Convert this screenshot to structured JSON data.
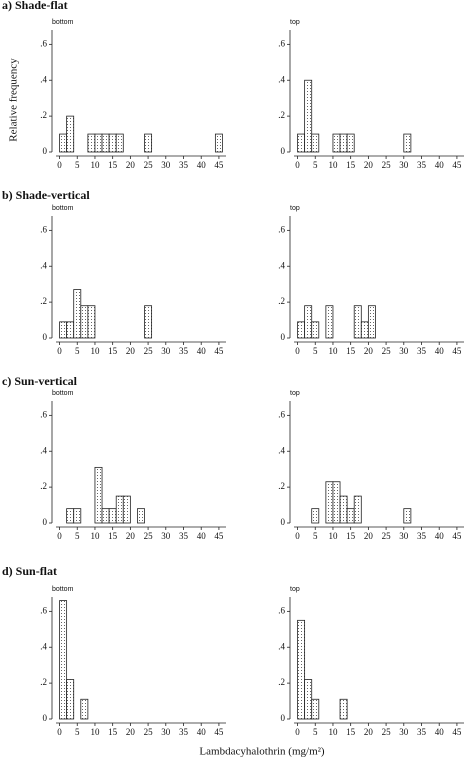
{
  "ylabel": "Relative frequency",
  "xlabel": "Lambdacyhalothrin (mg/m²)",
  "sections": [
    {
      "title": "a) Shade-flat"
    },
    {
      "title": "b) Shade-vertical"
    },
    {
      "title": "c) Sun-vertical"
    },
    {
      "title": "d) Sun-flat"
    }
  ],
  "chart_data": [
    {
      "type": "histogram",
      "title": "bottom",
      "bins": [
        0,
        2,
        4,
        6,
        8,
        10,
        12,
        14,
        16,
        18,
        20,
        22,
        24,
        26,
        28,
        30,
        32,
        34,
        36,
        38,
        40,
        42,
        44,
        46
      ],
      "values": [
        0.1,
        0.2,
        0,
        0,
        0.1,
        0.1,
        0.1,
        0.1,
        0.1,
        0,
        0,
        0,
        0.1,
        0,
        0,
        0,
        0,
        0,
        0,
        0,
        0,
        0,
        0.1
      ],
      "xlim": [
        -1,
        47
      ],
      "xticks": [
        0,
        5,
        10,
        15,
        20,
        25,
        30,
        35,
        40,
        45
      ],
      "ylim": [
        0,
        0.68
      ],
      "yticks": [
        0,
        {
          "value": 0.2,
          "label": ".2"
        },
        {
          "value": 0.4,
          "label": ".4"
        },
        {
          "value": 0.6,
          "label": ".6"
        }
      ]
    },
    {
      "type": "histogram",
      "title": "top",
      "bins": [
        0,
        2,
        4,
        6,
        8,
        10,
        12,
        14,
        16,
        18,
        20,
        22,
        24,
        26,
        28,
        30,
        32,
        34,
        36,
        38,
        40,
        42,
        44,
        46
      ],
      "values": [
        0.1,
        0.4,
        0.1,
        0,
        0,
        0.1,
        0.1,
        0.1,
        0,
        0,
        0,
        0,
        0,
        0,
        0,
        0.1,
        0,
        0,
        0,
        0,
        0,
        0,
        0
      ],
      "xlim": [
        -1,
        47
      ],
      "xticks": [
        0,
        5,
        10,
        15,
        20,
        25,
        30,
        35,
        40,
        45
      ],
      "ylim": [
        0,
        0.68
      ],
      "yticks": [
        0,
        {
          "value": 0.2,
          "label": ".2"
        },
        {
          "value": 0.4,
          "label": ".4"
        },
        {
          "value": 0.6,
          "label": ".6"
        }
      ]
    },
    {
      "type": "histogram",
      "title": "bottom",
      "bins": [
        0,
        2,
        4,
        6,
        8,
        10,
        12,
        14,
        16,
        18,
        20,
        22,
        24,
        26,
        28,
        30,
        32,
        34,
        36,
        38,
        40,
        42,
        44,
        46
      ],
      "values": [
        0.09,
        0.09,
        0.27,
        0.18,
        0.18,
        0,
        0,
        0,
        0,
        0,
        0,
        0,
        0.18,
        0,
        0,
        0,
        0,
        0,
        0,
        0,
        0,
        0,
        0
      ],
      "xlim": [
        -1,
        47
      ],
      "xticks": [
        0,
        5,
        10,
        15,
        20,
        25,
        30,
        35,
        40,
        45
      ],
      "ylim": [
        0,
        0.68
      ],
      "yticks": [
        0,
        {
          "value": 0.2,
          "label": ".2"
        },
        {
          "value": 0.4,
          "label": ".4"
        },
        {
          "value": 0.6,
          "label": ".6"
        }
      ]
    },
    {
      "type": "histogram",
      "title": "top",
      "bins": [
        0,
        2,
        4,
        6,
        8,
        10,
        12,
        14,
        16,
        18,
        20,
        22,
        24,
        26,
        28,
        30,
        32,
        34,
        36,
        38,
        40,
        42,
        44,
        46
      ],
      "values": [
        0.09,
        0.18,
        0.09,
        0,
        0.18,
        0,
        0,
        0,
        0.18,
        0.09,
        0.18,
        0,
        0,
        0,
        0,
        0,
        0,
        0,
        0,
        0,
        0,
        0,
        0
      ],
      "xlim": [
        -1,
        47
      ],
      "xticks": [
        0,
        5,
        10,
        15,
        20,
        25,
        30,
        35,
        40,
        45
      ],
      "ylim": [
        0,
        0.68
      ],
      "yticks": [
        0,
        {
          "value": 0.2,
          "label": ".2"
        },
        {
          "value": 0.4,
          "label": ".4"
        },
        {
          "value": 0.6,
          "label": ".6"
        }
      ]
    },
    {
      "type": "histogram",
      "title": "bottom",
      "bins": [
        0,
        2,
        4,
        6,
        8,
        10,
        12,
        14,
        16,
        18,
        20,
        22,
        24,
        26,
        28,
        30,
        32,
        34,
        36,
        38,
        40,
        42,
        44,
        46
      ],
      "values": [
        0,
        0.08,
        0.08,
        0,
        0,
        0.31,
        0.08,
        0.08,
        0.15,
        0.15,
        0,
        0.08,
        0,
        0,
        0,
        0,
        0,
        0,
        0,
        0,
        0,
        0,
        0
      ],
      "xlim": [
        -1,
        47
      ],
      "xticks": [
        0,
        5,
        10,
        15,
        20,
        25,
        30,
        35,
        40,
        45
      ],
      "ylim": [
        0,
        0.68
      ],
      "yticks": [
        0,
        {
          "value": 0.2,
          "label": ".2"
        },
        {
          "value": 0.4,
          "label": ".4"
        },
        {
          "value": 0.6,
          "label": ".6"
        }
      ]
    },
    {
      "type": "histogram",
      "title": "top",
      "bins": [
        0,
        2,
        4,
        6,
        8,
        10,
        12,
        14,
        16,
        18,
        20,
        22,
        24,
        26,
        28,
        30,
        32,
        34,
        36,
        38,
        40,
        42,
        44,
        46
      ],
      "values": [
        0,
        0,
        0.08,
        0,
        0.23,
        0.23,
        0.15,
        0.08,
        0.15,
        0,
        0,
        0,
        0,
        0,
        0,
        0.08,
        0,
        0,
        0,
        0,
        0,
        0,
        0
      ],
      "xlim": [
        -1,
        47
      ],
      "xticks": [
        0,
        5,
        10,
        15,
        20,
        25,
        30,
        35,
        40,
        45
      ],
      "ylim": [
        0,
        0.68
      ],
      "yticks": [
        0,
        {
          "value": 0.2,
          "label": ".2"
        },
        {
          "value": 0.4,
          "label": ".4"
        },
        {
          "value": 0.6,
          "label": ".6"
        }
      ]
    },
    {
      "type": "histogram",
      "title": "bottom",
      "bins": [
        0,
        2,
        4,
        6,
        8,
        10,
        12,
        14,
        16,
        18,
        20,
        22,
        24,
        26,
        28,
        30,
        32,
        34,
        36,
        38,
        40,
        42,
        44,
        46
      ],
      "values": [
        0.66,
        0.22,
        0,
        0.11,
        0,
        0,
        0,
        0,
        0,
        0,
        0,
        0,
        0,
        0,
        0,
        0,
        0,
        0,
        0,
        0,
        0,
        0,
        0
      ],
      "xlim": [
        -1,
        47
      ],
      "xticks": [
        0,
        5,
        10,
        15,
        20,
        25,
        30,
        35,
        40,
        45
      ],
      "ylim": [
        0,
        0.68
      ],
      "yticks": [
        0,
        {
          "value": 0.2,
          "label": ".2"
        },
        {
          "value": 0.4,
          "label": ".4"
        },
        {
          "value": 0.6,
          "label": ".6"
        }
      ]
    },
    {
      "type": "histogram",
      "title": "top",
      "bins": [
        0,
        2,
        4,
        6,
        8,
        10,
        12,
        14,
        16,
        18,
        20,
        22,
        24,
        26,
        28,
        30,
        32,
        34,
        36,
        38,
        40,
        42,
        44,
        46
      ],
      "values": [
        0.55,
        0.22,
        0.11,
        0,
        0,
        0,
        0.11,
        0,
        0,
        0,
        0,
        0,
        0,
        0,
        0,
        0,
        0,
        0,
        0,
        0,
        0,
        0,
        0
      ],
      "xlim": [
        -1,
        47
      ],
      "xticks": [
        0,
        5,
        10,
        15,
        20,
        25,
        30,
        35,
        40,
        45
      ],
      "ylim": [
        0,
        0.68
      ],
      "yticks": [
        0,
        {
          "value": 0.2,
          "label": ".2"
        },
        {
          "value": 0.4,
          "label": ".4"
        },
        {
          "value": 0.6,
          "label": ".6"
        }
      ]
    }
  ]
}
